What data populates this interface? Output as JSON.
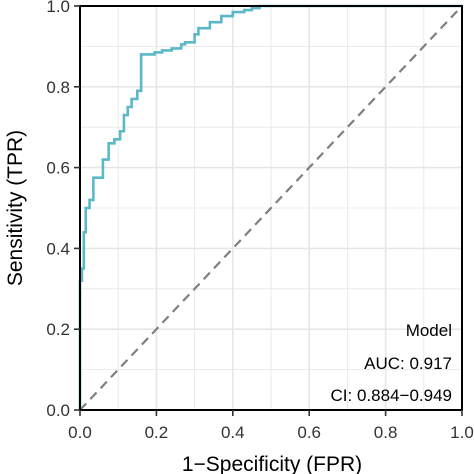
{
  "chart_data": {
    "type": "line",
    "title": "",
    "xlabel": "1−Specificity (FPR)",
    "ylabel": "Sensitivity (TPR)",
    "xlim": [
      0,
      1
    ],
    "ylim": [
      0,
      1
    ],
    "x_ticks": [
      "0.0",
      "0.2",
      "0.4",
      "0.6",
      "0.8",
      "1.0"
    ],
    "y_ticks": [
      "0.0",
      "0.2",
      "0.4",
      "0.6",
      "0.8",
      "1.0"
    ],
    "grid": true,
    "legend": "none",
    "colors": {
      "roc": "#5bb8c8",
      "diagonal": "#7f7f7f",
      "grid": "#e6e6e6",
      "frame": "#000000"
    },
    "annotations": [
      "Model",
      "AUC: 0.917",
      "CI: 0.884−0.949"
    ],
    "series": [
      {
        "x": [
          0,
          0,
          0.005,
          0.005,
          0.01,
          0.01,
          0.015,
          0.015,
          0.025,
          0.025,
          0.035,
          0.035,
          0.05,
          0.05,
          0.06,
          0.06,
          0.075,
          0.075,
          0.09,
          0.09,
          0.105,
          0.105,
          0.115,
          0.115,
          0.125,
          0.125,
          0.135,
          0.135,
          0.15,
          0.15,
          0.16,
          0.16,
          0.195,
          0.195,
          0.215,
          0.215,
          0.24,
          0.24,
          0.265,
          0.265,
          0.275,
          0.275,
          0.3,
          0.3,
          0.31,
          0.31,
          0.34,
          0.34,
          0.37,
          0.37,
          0.4,
          0.4,
          0.43,
          0.43,
          0.45,
          0.45,
          0.47,
          0.47,
          1.0
        ],
        "y": [
          0,
          0.32,
          0.32,
          0.35,
          0.35,
          0.44,
          0.44,
          0.5,
          0.5,
          0.52,
          0.52,
          0.575,
          0.575,
          0.575,
          0.575,
          0.62,
          0.62,
          0.66,
          0.66,
          0.67,
          0.67,
          0.69,
          0.69,
          0.73,
          0.73,
          0.75,
          0.75,
          0.77,
          0.77,
          0.79,
          0.79,
          0.88,
          0.88,
          0.885,
          0.885,
          0.89,
          0.89,
          0.895,
          0.895,
          0.905,
          0.905,
          0.91,
          0.91,
          0.93,
          0.93,
          0.945,
          0.945,
          0.96,
          0.96,
          0.975,
          0.975,
          0.985,
          0.985,
          0.99,
          0.99,
          0.995,
          0.995,
          1.0,
          1.0
        ]
      }
    ]
  }
}
